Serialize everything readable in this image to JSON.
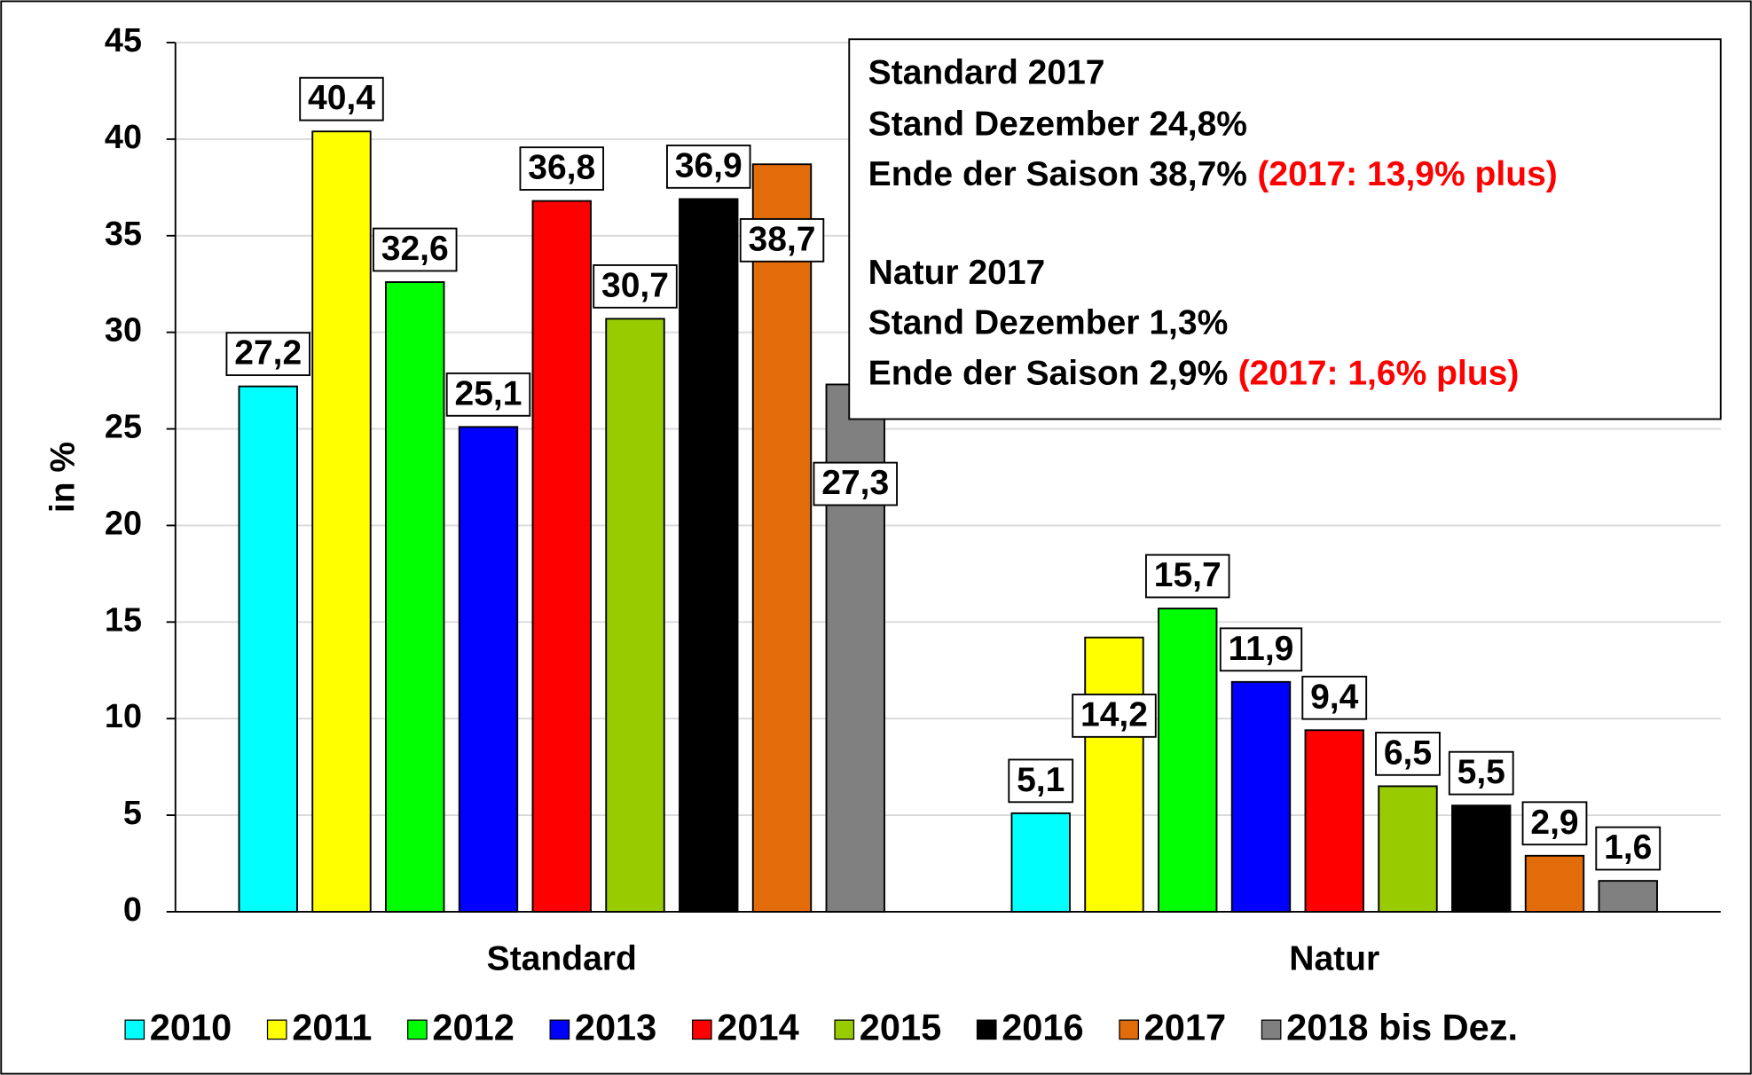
{
  "chart_data": {
    "type": "bar",
    "y_label": "in %",
    "categories": [
      "Standard",
      "Natur"
    ],
    "ylim": [
      0,
      45
    ],
    "yticks": [
      0,
      5,
      10,
      15,
      20,
      25,
      30,
      35,
      40,
      45
    ],
    "grid": true,
    "series": [
      {
        "name": "2010",
        "color": "#00ffff",
        "values": [
          27.2,
          5.1
        ],
        "value_labels": [
          "27,2",
          "5,1"
        ]
      },
      {
        "name": "2011",
        "color": "#ffff00",
        "values": [
          40.4,
          14.2
        ],
        "value_labels": [
          "40,4",
          "14,2"
        ]
      },
      {
        "name": "2012",
        "color": "#00ff00",
        "values": [
          32.6,
          15.7
        ],
        "value_labels": [
          "32,6",
          "15,7"
        ]
      },
      {
        "name": "2013",
        "color": "#0000ff",
        "values": [
          25.1,
          11.9
        ],
        "value_labels": [
          "25,1",
          "11,9"
        ]
      },
      {
        "name": "2014",
        "color": "#ff0000",
        "values": [
          36.8,
          9.4
        ],
        "value_labels": [
          "36,8",
          "9,4"
        ]
      },
      {
        "name": "2015",
        "color": "#99cc00",
        "values": [
          30.7,
          6.5
        ],
        "value_labels": [
          "30,7",
          "6,5"
        ]
      },
      {
        "name": "2016",
        "color": "#000000",
        "values": [
          36.9,
          5.5
        ],
        "value_labels": [
          "36,9",
          "5,5"
        ]
      },
      {
        "name": "2017",
        "color": "#e36c0a",
        "values": [
          38.7,
          2.9
        ],
        "value_labels": [
          "38,7",
          "2,9"
        ]
      },
      {
        "name": "2018 bis Dez.",
        "color": "#808080",
        "values": [
          27.3,
          1.6
        ],
        "value_labels": [
          "27,3",
          "1,6"
        ]
      }
    ],
    "annotation": [
      {
        "text": "Standard 2017"
      },
      {
        "text": "Stand Dezember 24,8%"
      },
      {
        "text": "Ende der Saison 38,7%",
        "highlight": "(2017: 13,9% plus)"
      },
      {
        "text": "Natur 2017"
      },
      {
        "text": "Stand Dezember 1,3%"
      },
      {
        "text": "Ende der Saison 2,9%",
        "highlight": "(2017: 1,6% plus)"
      }
    ]
  }
}
